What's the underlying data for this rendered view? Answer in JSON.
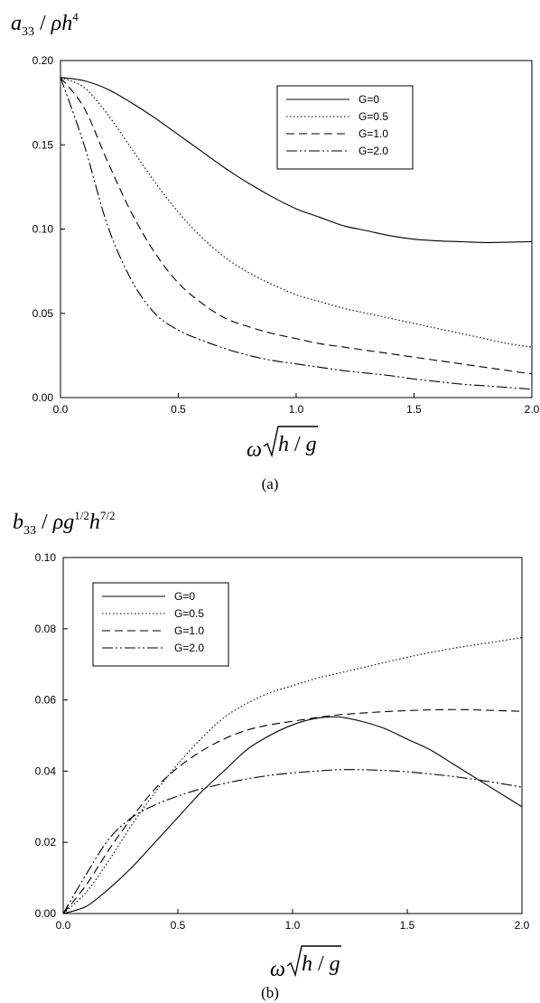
{
  "chart_data": [
    {
      "type": "line",
      "ylabel": {
        "a": "a",
        "a_sub": "33",
        "sep": " / ",
        "rho": "ρ",
        "h": "h",
        "h_sup": "4"
      },
      "xlabel": {
        "omega": "ω",
        "h": "h",
        "slash": " / ",
        "g": "g"
      },
      "caption": "(a)",
      "xlim": [
        0.0,
        2.0
      ],
      "ylim": [
        0.0,
        0.2
      ],
      "x_ticks": [
        "0.0",
        "0.5",
        "1.0",
        "1.5",
        "2.0"
      ],
      "y_ticks": [
        "0.00",
        "0.05",
        "0.10",
        "0.15",
        "0.20"
      ],
      "legend_position": "top-right",
      "series": [
        {
          "name": "G=0",
          "dash": "",
          "x": [
            0,
            0.1,
            0.2,
            0.3,
            0.4,
            0.5,
            0.6,
            0.7,
            0.8,
            0.9,
            1.0,
            1.1,
            1.2,
            1.3,
            1.4,
            1.5,
            1.6,
            1.7,
            1.8,
            1.9,
            2.0
          ],
          "y": [
            0.19,
            0.188,
            0.183,
            0.175,
            0.166,
            0.156,
            0.146,
            0.136,
            0.127,
            0.119,
            0.112,
            0.107,
            0.102,
            0.099,
            0.096,
            0.094,
            0.093,
            0.0925,
            0.092,
            0.0922,
            0.0925
          ]
        },
        {
          "name": "G=0.5",
          "dash": "1.5,2.5",
          "x": [
            0,
            0.1,
            0.2,
            0.3,
            0.4,
            0.5,
            0.6,
            0.7,
            0.8,
            0.9,
            1.0,
            1.1,
            1.2,
            1.3,
            1.4,
            1.5,
            1.6,
            1.7,
            1.8,
            1.9,
            2.0
          ],
          "y": [
            0.19,
            0.184,
            0.168,
            0.148,
            0.128,
            0.11,
            0.095,
            0.083,
            0.074,
            0.067,
            0.061,
            0.057,
            0.053,
            0.05,
            0.047,
            0.044,
            0.041,
            0.038,
            0.035,
            0.032,
            0.03
          ]
        },
        {
          "name": "G=1.0",
          "dash": "9,5",
          "x": [
            0,
            0.1,
            0.2,
            0.3,
            0.4,
            0.5,
            0.6,
            0.7,
            0.8,
            0.9,
            1.0,
            1.1,
            1.2,
            1.3,
            1.4,
            1.5,
            1.6,
            1.7,
            1.8,
            1.9,
            2.0
          ],
          "y": [
            0.19,
            0.172,
            0.14,
            0.11,
            0.086,
            0.068,
            0.056,
            0.047,
            0.042,
            0.038,
            0.035,
            0.032,
            0.03,
            0.028,
            0.026,
            0.024,
            0.022,
            0.02,
            0.018,
            0.016,
            0.014
          ]
        },
        {
          "name": "G=2.0",
          "dash": "12,3,2,3,2,3",
          "x": [
            0,
            0.1,
            0.2,
            0.3,
            0.4,
            0.5,
            0.6,
            0.7,
            0.8,
            0.9,
            1.0,
            1.1,
            1.2,
            1.3,
            1.4,
            1.5,
            1.6,
            1.7,
            1.8,
            1.9,
            2.0
          ],
          "y": [
            0.19,
            0.15,
            0.102,
            0.07,
            0.05,
            0.04,
            0.034,
            0.029,
            0.025,
            0.022,
            0.02,
            0.018,
            0.016,
            0.0145,
            0.013,
            0.011,
            0.0095,
            0.008,
            0.007,
            0.006,
            0.005
          ]
        }
      ]
    },
    {
      "type": "line",
      "ylabel": {
        "b": "b",
        "b_sub": "33",
        "sep": " / ",
        "rho": "ρ",
        "g": "g",
        "g_sup": "1/2",
        "h": "h",
        "h_sup": "7/2"
      },
      "xlabel": {
        "omega": "ω",
        "h": "h",
        "slash": " / ",
        "g": "g"
      },
      "caption": "(b)",
      "xlim": [
        0.0,
        2.0
      ],
      "ylim": [
        0.0,
        0.1
      ],
      "x_ticks": [
        "0.0",
        "0.5",
        "1.0",
        "1.5",
        "2.0"
      ],
      "y_ticks": [
        "0.00",
        "0.02",
        "0.04",
        "0.06",
        "0.08",
        "0.10"
      ],
      "legend_position": "top-left",
      "series": [
        {
          "name": "G=0",
          "dash": "",
          "x": [
            0,
            0.1,
            0.2,
            0.3,
            0.4,
            0.5,
            0.6,
            0.7,
            0.8,
            0.9,
            1.0,
            1.1,
            1.2,
            1.3,
            1.4,
            1.5,
            1.6,
            1.7,
            1.8,
            1.9,
            2.0
          ],
          "y": [
            0,
            0.002,
            0.007,
            0.013,
            0.02,
            0.027,
            0.034,
            0.04,
            0.046,
            0.05,
            0.053,
            0.0548,
            0.0552,
            0.054,
            0.052,
            0.049,
            0.046,
            0.042,
            0.038,
            0.034,
            0.03
          ]
        },
        {
          "name": "G=0.5",
          "dash": "1.5,2.5",
          "x": [
            0,
            0.1,
            0.2,
            0.3,
            0.4,
            0.5,
            0.6,
            0.7,
            0.8,
            0.9,
            1.0,
            1.1,
            1.2,
            1.3,
            1.4,
            1.5,
            1.6,
            1.7,
            1.8,
            1.9,
            2.0
          ],
          "y": [
            0,
            0.006,
            0.015,
            0.025,
            0.034,
            0.042,
            0.049,
            0.055,
            0.059,
            0.062,
            0.064,
            0.066,
            0.0675,
            0.069,
            0.0705,
            0.072,
            0.0733,
            0.0745,
            0.0755,
            0.0765,
            0.0775
          ]
        },
        {
          "name": "G=1.0",
          "dash": "9,5",
          "x": [
            0,
            0.1,
            0.2,
            0.3,
            0.4,
            0.5,
            0.6,
            0.7,
            0.8,
            0.9,
            1.0,
            1.1,
            1.2,
            1.3,
            1.4,
            1.5,
            1.6,
            1.7,
            1.8,
            1.9,
            2.0
          ],
          "y": [
            0,
            0.008,
            0.018,
            0.027,
            0.035,
            0.041,
            0.0455,
            0.049,
            0.0515,
            0.053,
            0.054,
            0.055,
            0.0558,
            0.0563,
            0.0567,
            0.057,
            0.0572,
            0.0573,
            0.0572,
            0.057,
            0.0568
          ]
        },
        {
          "name": "G=2.0",
          "dash": "12,3,2,3,2,3",
          "x": [
            0,
            0.1,
            0.2,
            0.3,
            0.4,
            0.5,
            0.6,
            0.7,
            0.8,
            0.9,
            1.0,
            1.1,
            1.2,
            1.3,
            1.4,
            1.5,
            1.6,
            1.7,
            1.8,
            1.9,
            2.0
          ],
          "y": [
            0,
            0.011,
            0.021,
            0.027,
            0.0305,
            0.033,
            0.035,
            0.0365,
            0.0378,
            0.0388,
            0.0395,
            0.04,
            0.0404,
            0.0404,
            0.0402,
            0.0398,
            0.0392,
            0.0385,
            0.0376,
            0.0366,
            0.0355
          ]
        }
      ]
    }
  ]
}
